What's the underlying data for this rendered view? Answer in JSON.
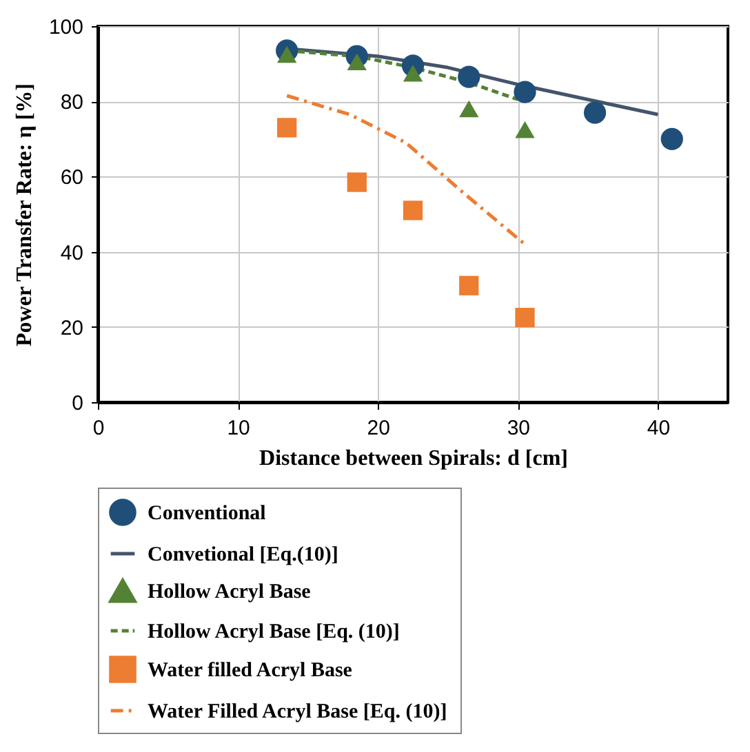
{
  "chart_data": {
    "type": "scatter",
    "xlabel": "Distance between Spirals: d [cm]",
    "ylabel": "Power Transfer Rate: η [%]",
    "xlim": [
      0,
      45
    ],
    "xticks": [
      0,
      10,
      20,
      30,
      40
    ],
    "ylim": [
      0,
      100
    ],
    "yticks": [
      0,
      20,
      40,
      60,
      80,
      100
    ],
    "grid": true,
    "legend": "bottom",
    "series": [
      {
        "name": "Conventional",
        "type": "scatter",
        "marker": "circle",
        "color": "#1f4e79",
        "x": [
          13.5,
          18.5,
          22.5,
          26.5,
          30.5,
          35.5,
          41
        ],
        "values": [
          93.5,
          92,
          89.5,
          86.5,
          82.5,
          77,
          70
        ]
      },
      {
        "name": "Convetional [Eq.(10)]",
        "type": "line",
        "line_style": "solid",
        "color": "#44546a",
        "x": [
          13.5,
          20,
          25,
          30,
          35,
          40
        ],
        "values": [
          94,
          92,
          89,
          84.5,
          80.5,
          76.5
        ]
      },
      {
        "name": "Hollow Acryl Base",
        "type": "scatter",
        "marker": "triangle",
        "color": "#548235",
        "x": [
          13.5,
          18.5,
          22.5,
          26.5,
          30.5
        ],
        "values": [
          92.5,
          90.5,
          87.5,
          78,
          72.5
        ]
      },
      {
        "name": "Hollow Acryl Base [Eq. (10)]",
        "type": "line",
        "line_style": "dashed",
        "color": "#548235",
        "x": [
          13.5,
          18.5,
          22.5,
          26.5,
          30
        ],
        "values": [
          93.5,
          92,
          89,
          85,
          80.5
        ]
      },
      {
        "name": "Water filled Acryl Base",
        "type": "scatter",
        "marker": "square",
        "color": "#ed7d31",
        "x": [
          13.5,
          18.5,
          22.5,
          26.5,
          30.5
        ],
        "values": [
          73,
          58.5,
          51,
          31,
          22.5
        ]
      },
      {
        "name": "Water Filled Acryl Base [Eq. (10)]",
        "type": "line",
        "line_style": "dashdot",
        "color": "#ed7d31",
        "x": [
          13.5,
          18,
          22,
          26,
          30.5
        ],
        "values": [
          81.5,
          76.5,
          69,
          56,
          42
        ]
      }
    ]
  }
}
